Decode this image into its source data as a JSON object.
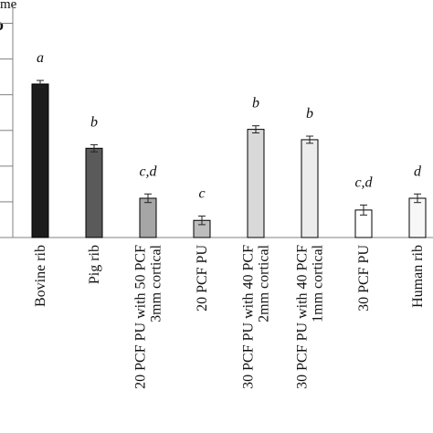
{
  "header": {
    "cropped_ylabel_fragment": "me",
    "cropped_panel_letter": "b"
  },
  "chart_data": {
    "type": "bar",
    "categories": [
      "Bovine rib",
      "Pig rib",
      "20 PCF PU with 50 PCF\n3mm cortical",
      "20 PCF PU",
      "30 PCF PU with 40 PCF\n2mm cortical",
      "30 PCF PU with 40 PCF\n1mm cortical",
      "30 PCF PU",
      "Human rib"
    ],
    "values": [
      4.3,
      2.5,
      1.1,
      0.48,
      3.03,
      2.74,
      0.77,
      1.1
    ],
    "errors": [
      0.1,
      0.1,
      0.12,
      0.12,
      0.1,
      0.1,
      0.14,
      0.12
    ],
    "significance_letters": [
      "a",
      "b",
      "c,d",
      "c",
      "b",
      "b",
      "c,d",
      "d"
    ],
    "bar_colors": [
      "#1c1c1c",
      "#5a5a5a",
      "#a6a6a6",
      "#bdbdbd",
      "#d9d9d9",
      "#ececec",
      "#ffffff",
      "#f7f7f7"
    ],
    "ylim": [
      0,
      6.5
    ],
    "yticks": [
      0,
      1,
      2,
      3,
      4,
      5,
      6
    ],
    "grid": false,
    "legend": "none",
    "title": "",
    "xlabel": "",
    "ylabel": ""
  }
}
